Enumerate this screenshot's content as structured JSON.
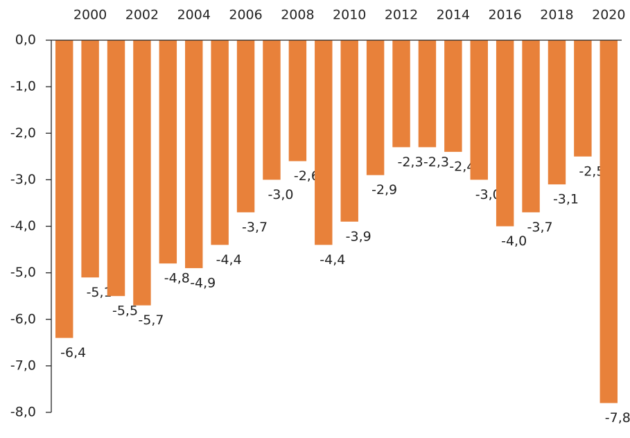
{
  "chart_data": {
    "type": "bar",
    "categories": [
      null,
      "2000",
      null,
      "2002",
      null,
      "2004",
      null,
      "2006",
      null,
      "2008",
      null,
      "2010",
      null,
      "2012",
      null,
      "2014",
      null,
      "2016",
      null,
      "2018",
      null,
      "2020"
    ],
    "values": [
      -6.4,
      -5.1,
      -5.5,
      -5.7,
      -4.8,
      -4.9,
      -4.4,
      -3.7,
      -3.0,
      -2.6,
      -4.4,
      -3.9,
      -2.9,
      -2.3,
      -2.3,
      -2.4,
      -3.0,
      -4.0,
      -3.7,
      -3.1,
      -2.5,
      -7.8
    ],
    "value_labels": [
      "-6,4",
      "-5,1",
      "-5,5",
      "-5,7",
      "-4,8",
      "-4,9",
      "-4,4",
      "-3,7",
      "-3,0",
      "-2,6",
      "-4,4",
      "-3,9",
      "-2,9",
      "-2,3",
      "-2,3",
      "-2,4",
      "-3,0",
      "-4,0",
      "-3,7",
      "-3,1",
      "-2,5",
      "-7,8"
    ],
    "color": "#e8813a",
    "ylim": [
      -8,
      0
    ],
    "yticks": [
      {
        "value": 0,
        "label": "0,0"
      },
      {
        "value": -1,
        "label": "-1,0"
      },
      {
        "value": -2,
        "label": "-2,0"
      },
      {
        "value": -3,
        "label": "-3,0"
      },
      {
        "value": -4,
        "label": "-4,0"
      },
      {
        "value": -5,
        "label": "-5,0"
      },
      {
        "value": -6,
        "label": "-6,0"
      },
      {
        "value": -7,
        "label": "-7,0"
      },
      {
        "value": -8,
        "label": "-8,0"
      }
    ],
    "grid": false
  }
}
